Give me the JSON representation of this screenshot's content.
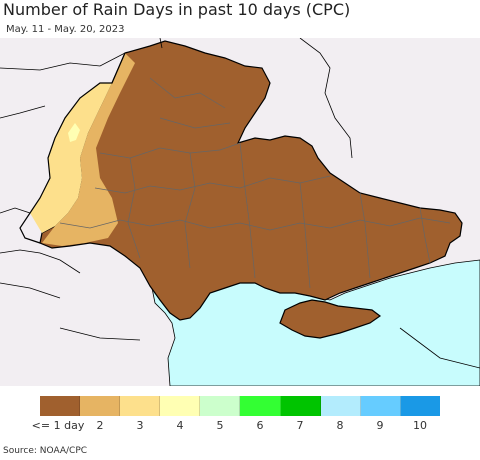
{
  "header": {
    "title": "Number of Rain Days in past 10 days (CPC)",
    "date_range": "May. 11 - May. 20, 2023"
  },
  "legend": {
    "items": [
      {
        "label": "<= 1 day",
        "color": "#a0602e"
      },
      {
        "label": "2",
        "color": "#e6b463"
      },
      {
        "label": "3",
        "color": "#fde08c"
      },
      {
        "label": "4",
        "color": "#ffffb3"
      },
      {
        "label": "5",
        "color": "#ccffcc"
      },
      {
        "label": "6",
        "color": "#33ff33"
      },
      {
        "label": "7",
        "color": "#00c400"
      },
      {
        "label": "8",
        "color": "#b3ecfd"
      },
      {
        "label": "9",
        "color": "#66ccff"
      },
      {
        "label": "10",
        "color": "#1a99e6"
      }
    ]
  },
  "colors": {
    "sea": "#c8fcfd",
    "background_land": "#f2eef2",
    "border": "#000000",
    "oblast_border": "#666666"
  },
  "footer": {
    "source": "Source: NOAA/CPC"
  }
}
